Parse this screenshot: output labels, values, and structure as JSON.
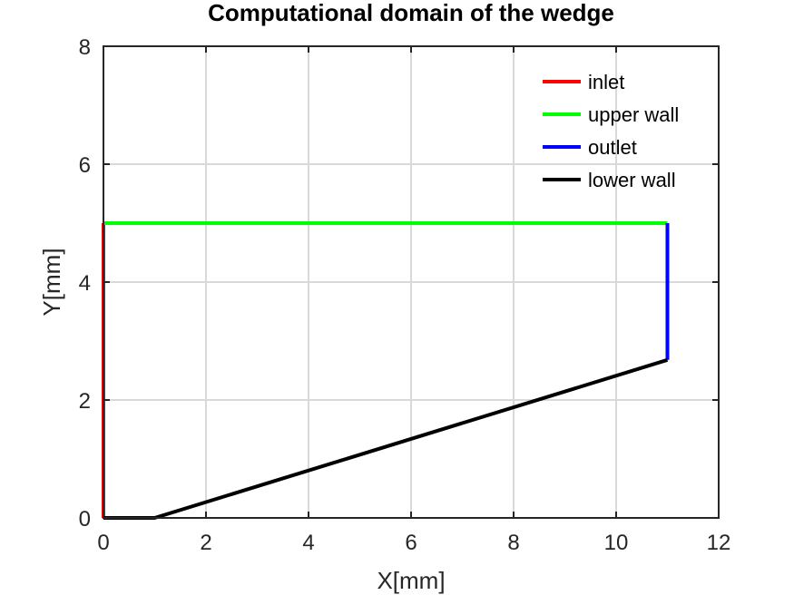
{
  "chart_data": {
    "type": "line",
    "title": "Computational domain of the wedge",
    "xlabel": "X[mm]",
    "ylabel": "Y[mm]",
    "xlim": [
      0,
      12
    ],
    "ylim": [
      0,
      8
    ],
    "xticks": [
      0,
      2,
      4,
      6,
      8,
      10,
      12
    ],
    "yticks": [
      0,
      2,
      4,
      6,
      8
    ],
    "grid": true,
    "legend_position": "top-right",
    "series": [
      {
        "name": "inlet",
        "color": "#ff0000",
        "x": [
          0,
          0
        ],
        "y": [
          0,
          5
        ]
      },
      {
        "name": "upper wall",
        "color": "#00ff00",
        "x": [
          0,
          11
        ],
        "y": [
          5,
          5
        ]
      },
      {
        "name": "outlet",
        "color": "#0000ff",
        "x": [
          11,
          11
        ],
        "y": [
          2.68,
          5
        ]
      },
      {
        "name": "lower wall",
        "color": "#000000",
        "x": [
          0,
          1,
          11
        ],
        "y": [
          0,
          0,
          2.68
        ]
      }
    ]
  }
}
